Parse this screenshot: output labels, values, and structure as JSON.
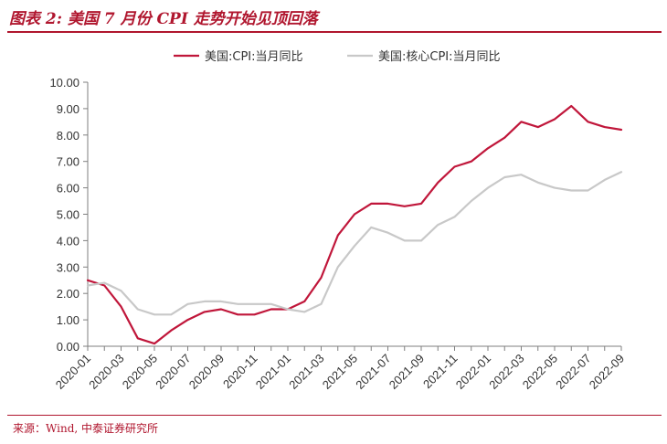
{
  "figure": {
    "title": "图表 2:  美国 7 月份 CPI 走势开始见顶回落",
    "source": "来源：Wind, 中泰证券研究所"
  },
  "chart_data": {
    "type": "line",
    "x": [
      "2020-01",
      "2020-02",
      "2020-03",
      "2020-04",
      "2020-05",
      "2020-06",
      "2020-07",
      "2020-08",
      "2020-09",
      "2020-10",
      "2020-11",
      "2020-12",
      "2021-01",
      "2021-02",
      "2021-03",
      "2021-04",
      "2021-05",
      "2021-06",
      "2021-07",
      "2021-08",
      "2021-09",
      "2021-10",
      "2021-11",
      "2021-12",
      "2022-01",
      "2022-02",
      "2022-03",
      "2022-04",
      "2022-05",
      "2022-06",
      "2022-07",
      "2022-08",
      "2022-09"
    ],
    "x_tick_labels": [
      "2020-01",
      "2020-03",
      "2020-05",
      "2020-07",
      "2020-09",
      "2020-11",
      "2021-01",
      "2021-03",
      "2021-05",
      "2021-07",
      "2021-09",
      "2021-11",
      "2022-01",
      "2022-03",
      "2022-05",
      "2022-07",
      "2022-09"
    ],
    "y_tick_labels": [
      "0.00",
      "1.00",
      "2.00",
      "3.00",
      "4.00",
      "5.00",
      "6.00",
      "7.00",
      "8.00",
      "9.00",
      "10.00"
    ],
    "ylim": [
      0,
      10
    ],
    "grid": false,
    "legend_position": "top",
    "series": [
      {
        "name": "美国:CPI:当月同比",
        "color": "#c0163a",
        "values": [
          2.5,
          2.3,
          1.5,
          0.3,
          0.1,
          0.6,
          1.0,
          1.3,
          1.4,
          1.2,
          1.2,
          1.4,
          1.4,
          1.7,
          2.6,
          4.2,
          5.0,
          5.4,
          5.4,
          5.3,
          5.4,
          6.2,
          6.8,
          7.0,
          7.5,
          7.9,
          8.5,
          8.3,
          8.6,
          9.1,
          8.5,
          8.3,
          8.2
        ]
      },
      {
        "name": "美国:核心CPI:当月同比",
        "color": "#c8c8c8",
        "values": [
          2.3,
          2.4,
          2.1,
          1.4,
          1.2,
          1.2,
          1.6,
          1.7,
          1.7,
          1.6,
          1.6,
          1.6,
          1.4,
          1.3,
          1.6,
          3.0,
          3.8,
          4.5,
          4.3,
          4.0,
          4.0,
          4.6,
          4.9,
          5.5,
          6.0,
          6.4,
          6.5,
          6.2,
          6.0,
          5.9,
          5.9,
          6.3,
          6.6
        ]
      }
    ]
  }
}
